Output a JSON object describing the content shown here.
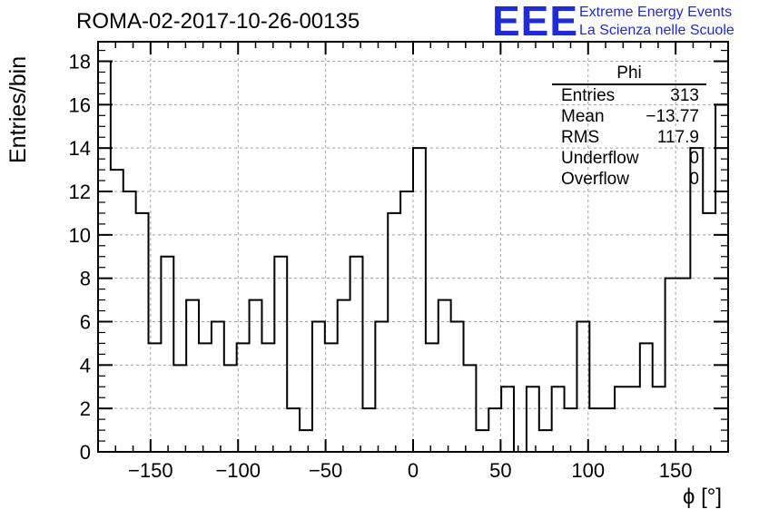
{
  "header": {
    "title": "ROMA-02-2017-10-26-00135",
    "logo": "EEE",
    "logo_line1": "Extreme Energy Events",
    "logo_line2": "La Scienza nelle Scuole"
  },
  "stats": {
    "title": "Phi",
    "rows": [
      {
        "label": "Entries",
        "value": "313"
      },
      {
        "label": "Mean",
        "value": "−13.77"
      },
      {
        "label": "RMS",
        "value": "117.9"
      },
      {
        "label": "Underflow",
        "value": "0"
      },
      {
        "label": "Overflow",
        "value": "0"
      }
    ]
  },
  "colors": {
    "line": "#000000",
    "grid": "#a0a0a0",
    "logo": "#1f2bd6"
  },
  "chart_data": {
    "type": "bar",
    "title": "ROMA-02-2017-10-26-00135",
    "xlabel": "ϕ [°]",
    "ylabel": "Entries/bin",
    "xlim": [
      -180,
      180
    ],
    "ylim": [
      0,
      18.9
    ],
    "grid": true,
    "bin_width": 7.2,
    "x_ticks": [
      -150,
      -100,
      -50,
      0,
      50,
      100,
      150
    ],
    "y_ticks": [
      0,
      2,
      4,
      6,
      8,
      10,
      12,
      14,
      16,
      18
    ],
    "x_tick_labels": [
      "−150",
      "−100",
      "−50",
      "0",
      "50",
      "100",
      "150"
    ],
    "y_tick_labels": [
      "0",
      "2",
      "4",
      "6",
      "8",
      "10",
      "12",
      "14",
      "16",
      "18"
    ],
    "bin_edges_start": -180,
    "values": [
      18,
      13,
      12,
      11,
      5,
      9,
      4,
      7,
      5,
      6,
      4,
      5,
      7,
      5,
      9,
      2,
      1,
      6,
      5,
      7,
      9,
      2,
      6,
      11,
      12,
      14,
      5,
      7,
      6,
      4,
      1,
      2,
      3,
      0,
      3,
      1,
      3,
      2,
      6,
      2,
      2,
      3,
      3,
      5,
      3,
      8,
      8,
      14,
      11,
      16
    ]
  }
}
